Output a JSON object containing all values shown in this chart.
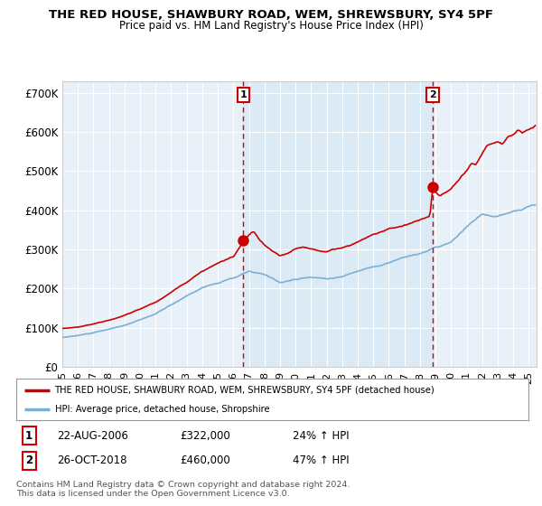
{
  "title": "THE RED HOUSE, SHAWBURY ROAD, WEM, SHREWSBURY, SY4 5PF",
  "subtitle": "Price paid vs. HM Land Registry's House Price Index (HPI)",
  "ylabel_ticks": [
    "£0",
    "£100K",
    "£200K",
    "£300K",
    "£400K",
    "£500K",
    "£600K",
    "£700K"
  ],
  "ytick_values": [
    0,
    100000,
    200000,
    300000,
    400000,
    500000,
    600000,
    700000
  ],
  "ylim": [
    0,
    730000
  ],
  "xlim_start": 1995.0,
  "xlim_end": 2025.5,
  "red_line_color": "#cc0000",
  "blue_line_color": "#7bafd4",
  "dashed_line_color": "#cc0000",
  "shade_color": "#ddeeff",
  "grid_color": "#cccccc",
  "background_color": "#ffffff",
  "plot_bg_color": "#f0f4f8",
  "sale1_x": 2006.64,
  "sale1_y": 322000,
  "sale1_label": "1",
  "sale1_date": "22-AUG-2006",
  "sale1_price": "£322,000",
  "sale1_hpi": "24% ↑ HPI",
  "sale2_x": 2018.82,
  "sale2_y": 460000,
  "sale2_label": "2",
  "sale2_date": "26-OCT-2018",
  "sale2_price": "£460,000",
  "sale2_hpi": "47% ↑ HPI",
  "legend_label_red": "THE RED HOUSE, SHAWBURY ROAD, WEM, SHREWSBURY, SY4 5PF (detached house)",
  "legend_label_blue": "HPI: Average price, detached house, Shropshire",
  "footer": "Contains HM Land Registry data © Crown copyright and database right 2024.\nThis data is licensed under the Open Government Licence v3.0."
}
